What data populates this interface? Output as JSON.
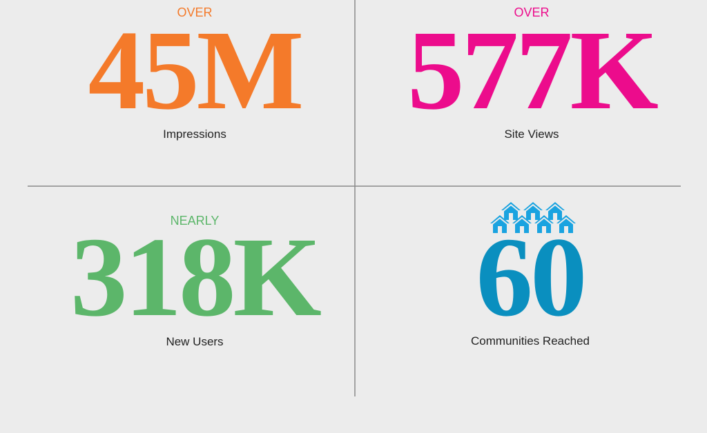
{
  "stats": [
    {
      "qualifier": "OVER",
      "value": "45M",
      "label": "Impressions"
    },
    {
      "qualifier": "OVER",
      "value": "577K",
      "label": "Site Views"
    },
    {
      "qualifier": "NEARLY",
      "value": "318K",
      "label": "New Users"
    },
    {
      "value": "60",
      "label": "Communities Reached"
    }
  ]
}
